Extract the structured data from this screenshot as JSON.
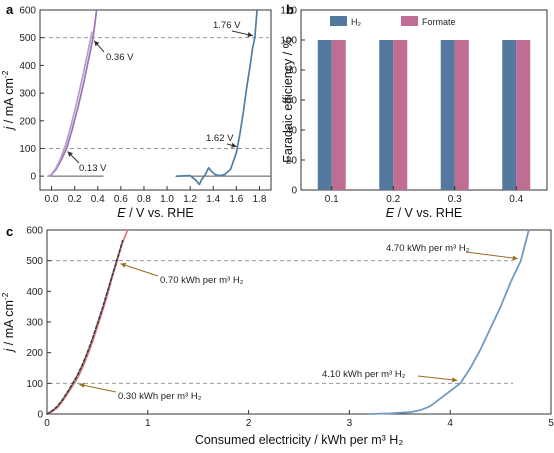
{
  "chart_data": [
    {
      "panel_label": "a",
      "type": "line",
      "xlabel_parts": [
        "E",
        " / V vs. RHE"
      ],
      "ylabel_parts": [
        "j",
        " / mA cm",
        "-2"
      ],
      "xlim": [
        -0.1,
        1.9
      ],
      "ylim": [
        -50,
        600
      ],
      "xticks": [
        "0.0",
        "0.2",
        "0.4",
        "0.6",
        "0.8",
        "1.0",
        "1.2",
        "1.4",
        "1.6",
        "1.8"
      ],
      "yticks": [
        "0",
        "100",
        "200",
        "300",
        "400",
        "500",
        "600"
      ],
      "grid": false,
      "reference_lines": [
        100,
        500
      ],
      "series": [
        {
          "color": "#9b72b8",
          "x": [
            -0.03,
            0.0,
            0.04,
            0.08,
            0.13,
            0.18,
            0.23,
            0.28,
            0.32,
            0.36,
            0.39
          ],
          "y": [
            0,
            5,
            25,
            55,
            100,
            170,
            250,
            340,
            420,
            500,
            600
          ]
        },
        {
          "color": "#b79ccc",
          "x": [
            -0.03,
            0.0,
            0.04,
            0.08,
            0.12,
            0.17,
            0.22,
            0.27,
            0.31,
            0.35
          ],
          "y": [
            0,
            6,
            30,
            65,
            110,
            185,
            270,
            360,
            440,
            520
          ]
        },
        {
          "color": "#4e7ea6",
          "x": [
            1.08,
            1.2,
            1.25,
            1.28,
            1.3,
            1.33,
            1.36,
            1.39,
            1.42,
            1.46,
            1.5,
            1.55,
            1.6,
            1.63,
            1.66,
            1.69,
            1.72,
            1.74,
            1.76,
            1.78
          ],
          "y": [
            0,
            2,
            -15,
            -30,
            -12,
            5,
            30,
            15,
            5,
            2,
            6,
            25,
            85,
            150,
            230,
            320,
            400,
            460,
            500,
            600
          ]
        }
      ],
      "annotations": [
        "0.36 V",
        "0.13 V",
        "1.76 V",
        "1.62 V"
      ]
    },
    {
      "panel_label": "b",
      "type": "bar",
      "xlabel_parts": [
        "E",
        " / V vs. RHE"
      ],
      "ylabel": "Faradaic efficiency / %",
      "categories": [
        "0.1",
        "0.2",
        "0.3",
        "0.4"
      ],
      "ylim": [
        0,
        120
      ],
      "yticks": [
        "0",
        "20",
        "40",
        "60",
        "80",
        "100",
        "120"
      ],
      "grid": false,
      "legend_position": "top",
      "series": [
        {
          "name": "H₂",
          "color": "#53799e",
          "values": [
            100,
            100,
            100,
            100
          ]
        },
        {
          "name": "Formate",
          "color": "#c06d93",
          "values": [
            100,
            100,
            100,
            100
          ]
        }
      ]
    },
    {
      "panel_label": "c",
      "type": "line",
      "xlabel": "Consumed electricity / kWh per m³ H₂",
      "ylabel_parts": [
        "j",
        " / mA cm",
        "-2"
      ],
      "xlim": [
        0,
        5
      ],
      "ylim": [
        0,
        600
      ],
      "xticks": [
        "0",
        "1",
        "2",
        "3",
        "4",
        "5"
      ],
      "yticks": [
        "0",
        "100",
        "200",
        "300",
        "400",
        "500",
        "600"
      ],
      "grid": false,
      "reference_lines": [
        100,
        500
      ],
      "series": [
        {
          "color": "#e07a80",
          "x": [
            0,
            0.05,
            0.1,
            0.15,
            0.2,
            0.25,
            0.3,
            0.35,
            0.4,
            0.45,
            0.5,
            0.55,
            0.6,
            0.65,
            0.7,
            0.75,
            0.8
          ],
          "y": [
            0,
            8,
            20,
            40,
            65,
            90,
            115,
            150,
            190,
            235,
            285,
            335,
            390,
            450,
            505,
            560,
            600
          ]
        },
        {
          "color": "#3a3a3a",
          "dashed": true,
          "x": [
            0,
            0.05,
            0.1,
            0.15,
            0.2,
            0.25,
            0.3,
            0.35,
            0.4,
            0.45,
            0.5,
            0.55,
            0.6,
            0.65,
            0.7,
            0.75,
            0.8
          ],
          "y": [
            0,
            10,
            24,
            45,
            70,
            97,
            125,
            160,
            200,
            245,
            295,
            345,
            400,
            455,
            510,
            565,
            610
          ]
        },
        {
          "color": "#6f9bc4",
          "x": [
            3.2,
            3.4,
            3.6,
            3.7,
            3.8,
            3.9,
            4.0,
            4.1,
            4.2,
            4.3,
            4.4,
            4.5,
            4.6,
            4.7,
            4.78
          ],
          "y": [
            0,
            2,
            6,
            12,
            25,
            50,
            75,
            100,
            150,
            210,
            280,
            350,
            430,
            500,
            600
          ]
        }
      ],
      "annotations": [
        "0.70 kWh per m³ H₂",
        "0.30 kWh per m³ H₂",
        "4.70 kWh per m³ H₂",
        "4.10 kWh per m³ H₂"
      ]
    }
  ]
}
